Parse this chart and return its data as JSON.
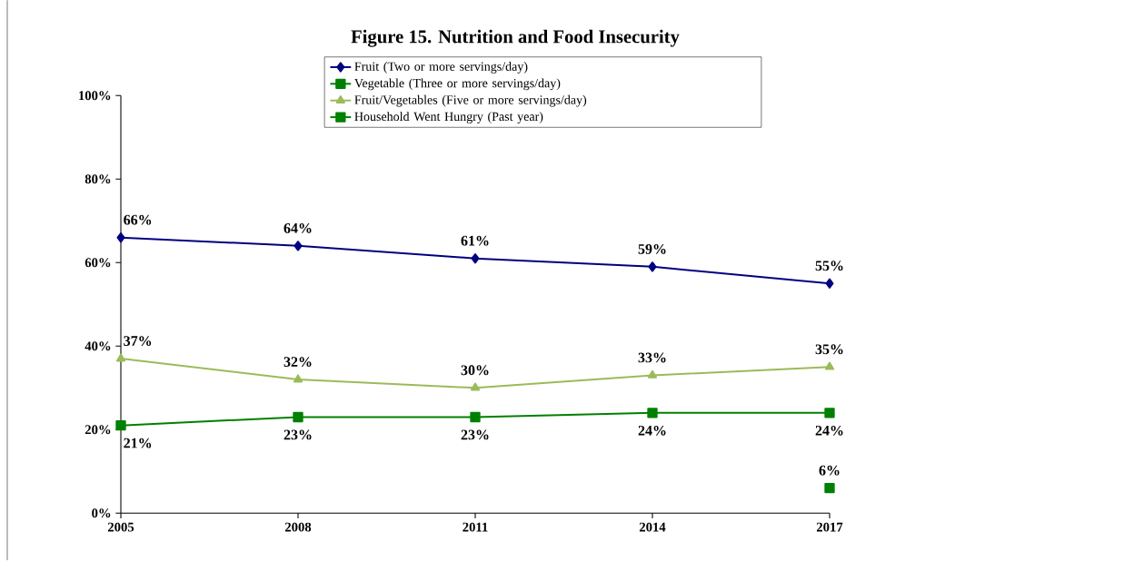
{
  "chart_data": {
    "type": "line",
    "title": "Figure 15. Nutrition and Food Insecurity",
    "categories": [
      "2005",
      "2008",
      "2011",
      "2014",
      "2017"
    ],
    "ylim": [
      0,
      100
    ],
    "yticks": [
      {
        "value": 0,
        "label": "0%"
      },
      {
        "value": 20,
        "label": "20%"
      },
      {
        "value": 40,
        "label": "40%"
      },
      {
        "value": 60,
        "label": "60%"
      },
      {
        "value": 80,
        "label": "80%"
      },
      {
        "value": 100,
        "label": "100%"
      }
    ],
    "grid": false,
    "legend": "top right",
    "series": [
      {
        "name": "Fruit (Two or more servings/day)",
        "color": "#000080",
        "marker": "diamond",
        "values": [
          66,
          64,
          61,
          59,
          55
        ],
        "value_labels": [
          "66%",
          "64%",
          "61%",
          "59%",
          "55%"
        ]
      },
      {
        "name": "Vegetable (Three or more servings/day)",
        "color": "#008000",
        "marker": "square",
        "values": [
          21,
          23,
          23,
          24,
          24
        ],
        "value_labels": [
          "21%",
          "23%",
          "23%",
          "24%",
          "24%"
        ]
      },
      {
        "name": "Fruit/Vegetables (Five or more servings/day)",
        "color": "#9bbb59",
        "marker": "triangle",
        "values": [
          37,
          32,
          30,
          33,
          35
        ],
        "value_labels": [
          "37%",
          "32%",
          "30%",
          "33%",
          "35%"
        ]
      },
      {
        "name": "Household Went Hungry (Past year)",
        "color": "#008000",
        "marker": "square",
        "values": [
          null,
          null,
          null,
          null,
          6
        ],
        "value_labels": [
          null,
          null,
          null,
          null,
          "6%"
        ]
      }
    ]
  }
}
